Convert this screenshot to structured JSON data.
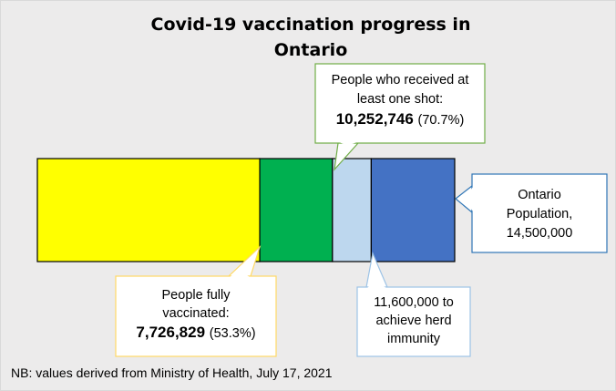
{
  "title_line1": "Covid-19 vaccination progress in",
  "title_line2": "Ontario",
  "footnote": "NB: values derived from Ministry of Health, July 17, 2021",
  "colors": {
    "fully_vaccinated": "#ffff00",
    "one_shot": "#00b050",
    "herd_immunity": "#bdd7ee",
    "population": "#4472c4"
  },
  "chart_data": {
    "type": "bar",
    "orientation": "horizontal-stacked",
    "total": 14500000,
    "segments": [
      {
        "key": "fully_vaccinated",
        "cumulative": 7726829,
        "color": "#ffff00"
      },
      {
        "key": "one_shot",
        "cumulative": 10252746,
        "color": "#00b050"
      },
      {
        "key": "herd_immunity",
        "cumulative": 11600000,
        "color": "#bdd7ee"
      },
      {
        "key": "population",
        "cumulative": 14500000,
        "color": "#4472c4"
      }
    ],
    "callouts": {
      "one_shot": {
        "lines": [
          "People who received at",
          "least one shot:"
        ],
        "value": "10,252,746",
        "pct": "(70.7%)",
        "border": "#70ad47"
      },
      "fully": {
        "lines": [
          "People fully",
          "vaccinated:"
        ],
        "value": "7,726,829",
        "pct": "(53.3%)",
        "border": "#ffd966"
      },
      "herd": {
        "lines": [
          "11,600,000 to",
          "achieve herd",
          "immunity"
        ],
        "border": "#9dc3e6"
      },
      "population": {
        "lines": [
          "Ontario",
          "Population,",
          "14,500,000"
        ],
        "border": "#2e75b6"
      }
    }
  }
}
